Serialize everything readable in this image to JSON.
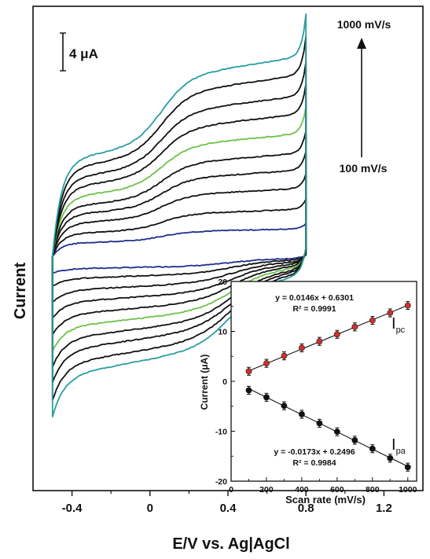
{
  "chart_data": [
    {
      "type": "line",
      "title": "",
      "xlabel": "E/V vs. Ag|AgCl",
      "ylabel": "Current",
      "xlim": [
        -0.6,
        1.4
      ],
      "ylim": [
        -30,
        32
      ],
      "x_ticks": [
        -0.4,
        0,
        0.4,
        0.8,
        1.2
      ],
      "x_tick_labels": [
        "-0.4",
        "0",
        "0.4",
        "0.8",
        "1.2"
      ],
      "grid": false,
      "scale_bar": {
        "label": "4 μA",
        "value": 4
      },
      "scan_rate_arrow": {
        "from_label": "100 mV/s",
        "to_label": "1000 mV/s"
      },
      "series": [
        {
          "scan_rate": 100,
          "color": "#1f2f8f",
          "ipa": -1.8,
          "ipc": 2.1
        },
        {
          "scan_rate": 200,
          "color": "#111111",
          "ipa": -3.2,
          "ipc": 3.6
        },
        {
          "scan_rate": 300,
          "color": "#111111",
          "ipa": -4.9,
          "ipc": 5.2
        },
        {
          "scan_rate": 400,
          "color": "#111111",
          "ipa": -6.6,
          "ipc": 6.6
        },
        {
          "scan_rate": 500,
          "color": "#111111",
          "ipa": -8.4,
          "ipc": 7.9
        },
        {
          "scan_rate": 600,
          "color": "#6cc24a",
          "ipa": -10.1,
          "ipc": 9.4
        },
        {
          "scan_rate": 700,
          "color": "#111111",
          "ipa": -11.8,
          "ipc": 10.9
        },
        {
          "scan_rate": 800,
          "color": "#111111",
          "ipa": -13.5,
          "ipc": 12.3
        },
        {
          "scan_rate": 900,
          "color": "#111111",
          "ipa": -15.4,
          "ipc": 13.9
        },
        {
          "scan_rate": 1000,
          "color": "#2a9ea0",
          "ipa": -17.1,
          "ipc": 15.3
        }
      ]
    },
    {
      "type": "scatter",
      "title": "",
      "xlabel": "Scan rate (mV/s)",
      "ylabel": "Current (μA)",
      "xlim": [
        0,
        1050
      ],
      "ylim": [
        -20,
        20
      ],
      "x_ticks": [
        0,
        200,
        400,
        600,
        800,
        1000
      ],
      "y_ticks": [
        -20,
        -10,
        0,
        10,
        20
      ],
      "x": [
        100,
        200,
        300,
        400,
        500,
        600,
        700,
        800,
        900,
        1000
      ],
      "series": [
        {
          "name": "I_pc",
          "label_main": "I",
          "label_sub": "pc",
          "color": "#d0302b",
          "values": [
            2.0,
            3.6,
            5.1,
            6.7,
            8.0,
            9.4,
            10.9,
            12.2,
            13.7,
            15.2
          ],
          "error": 0.8,
          "equation": "y = 0.0146x + 0.6301",
          "r2": "R² = 0.9991",
          "fit": {
            "slope": 0.0146,
            "intercept": 0.6301
          }
        },
        {
          "name": "I_pa",
          "label_main": "I",
          "label_sub": "pa",
          "color": "#111111",
          "values": [
            -1.8,
            -3.2,
            -4.9,
            -6.6,
            -8.4,
            -10.1,
            -11.8,
            -13.5,
            -15.4,
            -17.2
          ],
          "error": 0.8,
          "equation": "y = -0.0173x + 0.2496",
          "r2": "R² = 0.9984",
          "fit": {
            "slope": -0.0173,
            "intercept": 0.2496
          }
        }
      ]
    }
  ]
}
